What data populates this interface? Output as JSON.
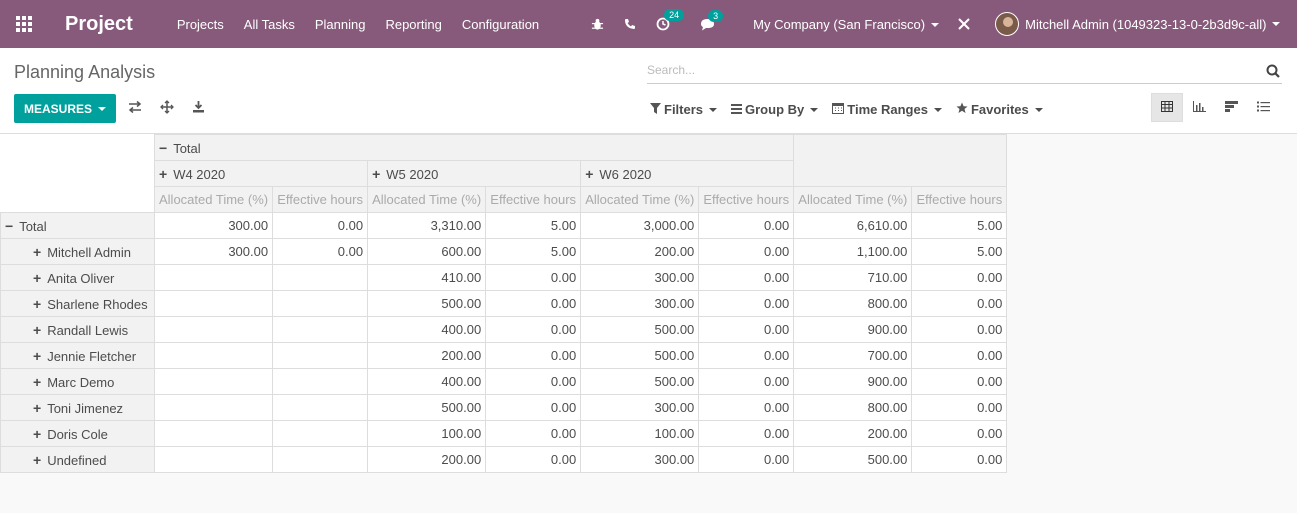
{
  "navbar": {
    "brand": "Project",
    "menu": [
      "Projects",
      "All Tasks",
      "Planning",
      "Reporting",
      "Configuration"
    ],
    "activity_count": "24",
    "message_count": "3",
    "company": "My Company (San Francisco)",
    "user": "Mitchell Admin (1049323-13-0-2b3d9c-all)"
  },
  "control_panel": {
    "title": "Planning Analysis",
    "search_placeholder": "Search...",
    "measures_label": "MEASURES",
    "filters_label": "Filters",
    "groupby_label": "Group By",
    "timeranges_label": "Time Ranges",
    "favorites_label": "Favorites"
  },
  "pivot": {
    "col_total": "Total",
    "weeks": [
      "W4 2020",
      "W5 2020",
      "W6 2020"
    ],
    "measures": [
      "Allocated Time (%)",
      "Effective hours"
    ],
    "row_total_label": "Total",
    "total_row": [
      "300.00",
      "0.00",
      "3,310.00",
      "5.00",
      "3,000.00",
      "0.00",
      "6,610.00",
      "5.00"
    ],
    "rows": [
      {
        "name": "Mitchell Admin",
        "values": [
          "300.00",
          "0.00",
          "600.00",
          "5.00",
          "200.00",
          "0.00",
          "1,100.00",
          "5.00"
        ]
      },
      {
        "name": "Anita Oliver",
        "values": [
          "",
          "",
          "410.00",
          "0.00",
          "300.00",
          "0.00",
          "710.00",
          "0.00"
        ]
      },
      {
        "name": "Sharlene Rhodes",
        "values": [
          "",
          "",
          "500.00",
          "0.00",
          "300.00",
          "0.00",
          "800.00",
          "0.00"
        ]
      },
      {
        "name": "Randall Lewis",
        "values": [
          "",
          "",
          "400.00",
          "0.00",
          "500.00",
          "0.00",
          "900.00",
          "0.00"
        ]
      },
      {
        "name": "Jennie Fletcher",
        "values": [
          "",
          "",
          "200.00",
          "0.00",
          "500.00",
          "0.00",
          "700.00",
          "0.00"
        ]
      },
      {
        "name": "Marc Demo",
        "values": [
          "",
          "",
          "400.00",
          "0.00",
          "500.00",
          "0.00",
          "900.00",
          "0.00"
        ]
      },
      {
        "name": "Toni Jimenez",
        "values": [
          "",
          "",
          "500.00",
          "0.00",
          "300.00",
          "0.00",
          "800.00",
          "0.00"
        ]
      },
      {
        "name": "Doris Cole",
        "values": [
          "",
          "",
          "100.00",
          "0.00",
          "100.00",
          "0.00",
          "200.00",
          "0.00"
        ]
      },
      {
        "name": "Undefined",
        "values": [
          "",
          "",
          "200.00",
          "0.00",
          "300.00",
          "0.00",
          "500.00",
          "0.00"
        ]
      }
    ]
  }
}
